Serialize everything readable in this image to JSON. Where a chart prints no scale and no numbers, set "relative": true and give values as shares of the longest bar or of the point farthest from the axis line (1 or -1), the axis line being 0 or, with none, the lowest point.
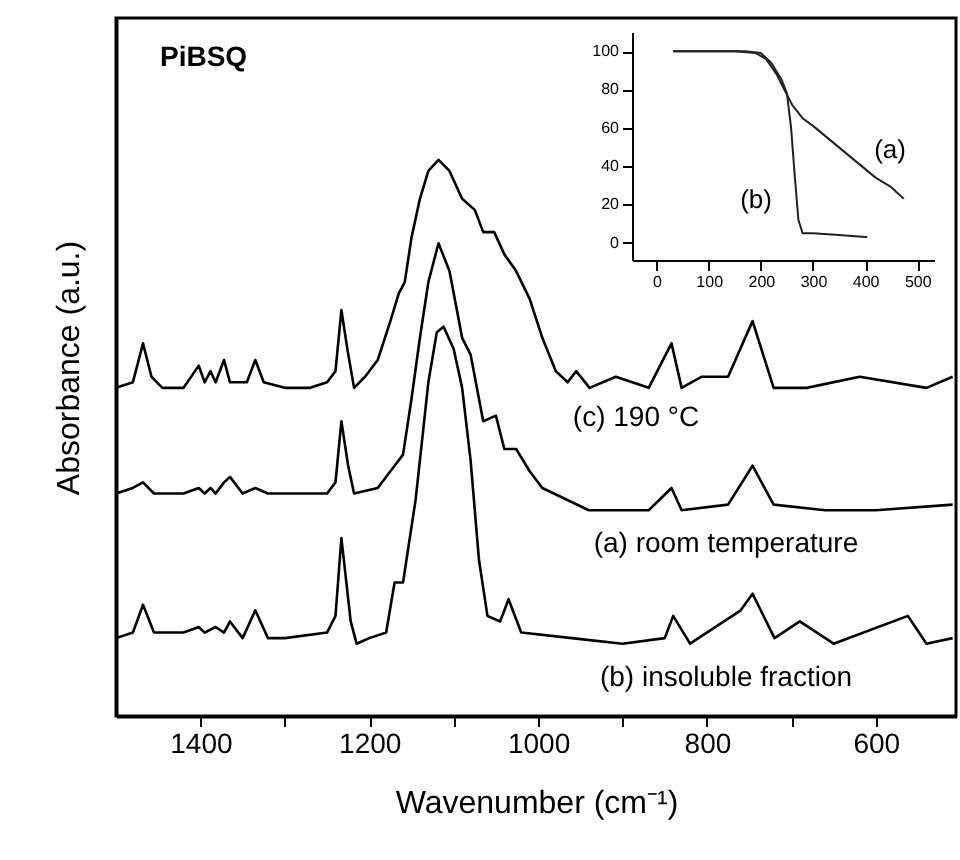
{
  "chart_data": [
    {
      "type": "line",
      "relative": true,
      "xlabel": "Wavenumber (cm⁻¹)",
      "ylabel": "Absorbance (a.u.)",
      "xlim": [
        1500,
        505
      ],
      "xticks": [
        1400,
        {
          "value": 1300,
          "label": null
        },
        1200,
        {
          "value": 1100,
          "label": null
        },
        1000,
        {
          "value": 900,
          "label": null
        },
        800,
        {
          "value": 700,
          "label": null
        },
        600
      ],
      "grid": false,
      "annotations": [
        "PiBSQ",
        "(c) 190 °C",
        "(a) room temperature",
        "(b) insoluble fraction"
      ],
      "series": [
        {
          "color": "#000000",
          "x": [
            1500,
            1480,
            1468,
            1458,
            1445,
            1420,
            1402,
            1395,
            1388,
            1382,
            1372,
            1365,
            1345,
            1335,
            1325,
            1300,
            1270,
            1250,
            1240,
            1233,
            1226,
            1218,
            1205,
            1190,
            1175,
            1165,
            1158,
            1150,
            1140,
            1130,
            1118,
            1105,
            1090,
            1075,
            1065,
            1052,
            1040,
            1026,
            1010,
            995,
            979,
            965,
            955,
            939,
            908,
            869,
            842,
            830,
            806,
            775,
            746,
            721,
            682,
            619,
            540,
            509
          ],
          "values": [
            0.59,
            0.6,
            0.67,
            0.61,
            0.59,
            0.59,
            0.63,
            0.6,
            0.62,
            0.6,
            0.64,
            0.6,
            0.6,
            0.64,
            0.6,
            0.59,
            0.59,
            0.6,
            0.62,
            0.73,
            0.66,
            0.59,
            0.61,
            0.64,
            0.71,
            0.76,
            0.78,
            0.86,
            0.93,
            0.98,
            1.0,
            0.98,
            0.93,
            0.91,
            0.87,
            0.87,
            0.83,
            0.8,
            0.75,
            0.68,
            0.62,
            0.6,
            0.62,
            0.59,
            0.61,
            0.59,
            0.67,
            0.59,
            0.61,
            0.61,
            0.71,
            0.59,
            0.59,
            0.61,
            0.59,
            0.61
          ]
        },
        {
          "color": "#000000",
          "x": [
            1500,
            1480,
            1468,
            1455,
            1420,
            1402,
            1395,
            1388,
            1382,
            1372,
            1365,
            1350,
            1335,
            1320,
            1300,
            1250,
            1240,
            1233,
            1225,
            1218,
            1190,
            1170,
            1160,
            1150,
            1140,
            1130,
            1118,
            1105,
            1090,
            1080,
            1065,
            1050,
            1040,
            1026,
            1010,
            995,
            940,
            869,
            842,
            830,
            775,
            746,
            721,
            660,
            600,
            509
          ],
          "values": [
            0.4,
            0.41,
            0.42,
            0.4,
            0.4,
            0.41,
            0.4,
            0.41,
            0.4,
            0.42,
            0.43,
            0.4,
            0.41,
            0.4,
            0.4,
            0.4,
            0.42,
            0.53,
            0.45,
            0.4,
            0.41,
            0.45,
            0.47,
            0.57,
            0.68,
            0.78,
            0.85,
            0.8,
            0.68,
            0.65,
            0.53,
            0.54,
            0.48,
            0.48,
            0.44,
            0.41,
            0.37,
            0.37,
            0.41,
            0.37,
            0.38,
            0.45,
            0.38,
            0.37,
            0.37,
            0.38
          ]
        },
        {
          "color": "#000000",
          "x": [
            1500,
            1480,
            1468,
            1455,
            1420,
            1402,
            1395,
            1382,
            1372,
            1365,
            1350,
            1335,
            1320,
            1300,
            1250,
            1240,
            1233,
            1222,
            1215,
            1200,
            1180,
            1170,
            1160,
            1145,
            1130,
            1120,
            1112,
            1100,
            1090,
            1080,
            1070,
            1060,
            1045,
            1035,
            1020,
            960,
            900,
            850,
            840,
            820,
            760,
            746,
            720,
            690,
            650,
            562,
            540,
            509
          ],
          "values": [
            0.14,
            0.15,
            0.2,
            0.15,
            0.15,
            0.16,
            0.15,
            0.16,
            0.15,
            0.17,
            0.14,
            0.19,
            0.14,
            0.14,
            0.15,
            0.18,
            0.32,
            0.17,
            0.13,
            0.14,
            0.15,
            0.24,
            0.24,
            0.39,
            0.6,
            0.69,
            0.7,
            0.66,
            0.59,
            0.46,
            0.28,
            0.18,
            0.17,
            0.21,
            0.15,
            0.14,
            0.13,
            0.14,
            0.18,
            0.13,
            0.19,
            0.22,
            0.14,
            0.17,
            0.13,
            0.18,
            0.13,
            0.14
          ]
        }
      ]
    },
    {
      "type": "line",
      "xlim": [
        -47,
        532
      ],
      "ylim": [
        -9,
        110
      ],
      "xticks": [
        0,
        100,
        200,
        300,
        400,
        500
      ],
      "yticks": [
        0,
        20,
        40,
        60,
        80,
        100
      ],
      "grid": false,
      "annotations": [
        "(a)",
        "(b)"
      ],
      "series": [
        {
          "color": "#222222",
          "x": [
            32,
            150,
            190,
            210,
            230,
            245,
            260,
            280,
            300,
            340,
            380,
            420,
            450,
            474
          ],
          "values": [
            100,
            100,
            99,
            96,
            88,
            80,
            72,
            65,
            61,
            52,
            43,
            34,
            29,
            23
          ]
        },
        {
          "color": "#222222",
          "x": [
            32,
            170,
            200,
            220,
            240,
            250,
            258,
            265,
            272,
            280,
            300,
            350,
            400,
            404
          ],
          "values": [
            100,
            100,
            99,
            94,
            85,
            78,
            60,
            35,
            12,
            5,
            5,
            4,
            3,
            3
          ]
        }
      ]
    }
  ]
}
